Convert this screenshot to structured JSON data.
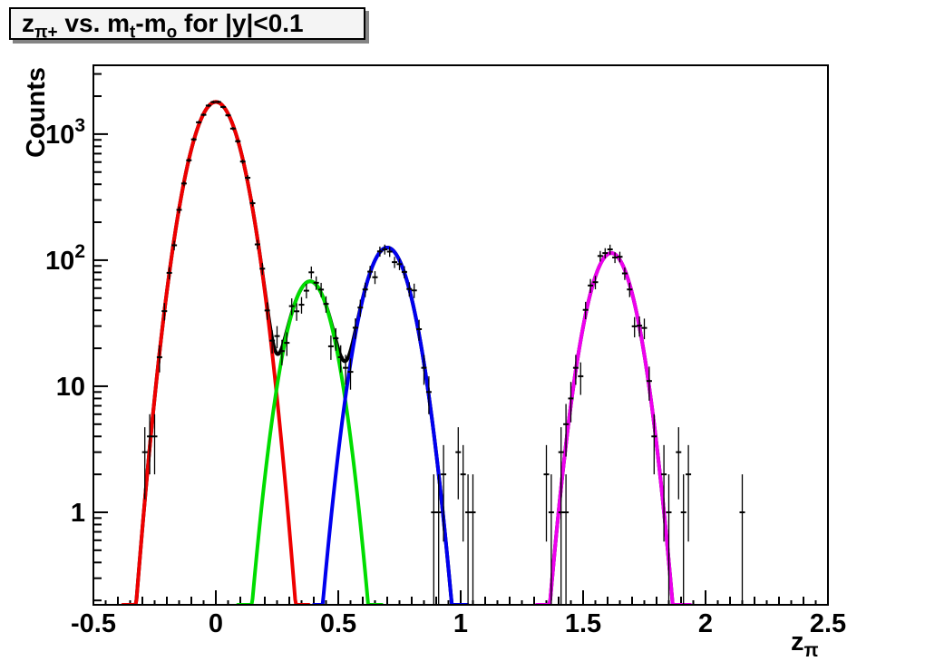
{
  "header": {
    "title_parts": [
      {
        "t": "z",
        "sub": "π+"
      },
      {
        "t": " vs. m",
        "sub": "t"
      },
      {
        "t": "-m",
        "sub": "o"
      },
      {
        "t": " for |y|<0.1",
        "sub": ""
      }
    ]
  },
  "axes": {
    "y_title": "Counts",
    "x_title": "z",
    "x_title_sub": "π"
  },
  "chart_data": {
    "type": "line+scatter",
    "title": "z_{π+} vs. m_t-m_o for |y|<0.1",
    "xlabel": "z_π",
    "ylabel": "Counts",
    "x_range": [
      -0.5,
      2.5
    ],
    "y_scale": "log",
    "y_range": [
      0.1846,
      3515
    ],
    "grid": false,
    "legend": "none",
    "axis_color": "#000000",
    "x_ticks": [
      {
        "value": -0.5,
        "label": "-0.5"
      },
      {
        "value": 0,
        "label": "0"
      },
      {
        "value": 0.5,
        "label": "0.5"
      },
      {
        "value": 1,
        "label": "1"
      },
      {
        "value": 1.5,
        "label": "1.5"
      },
      {
        "value": 2,
        "label": "2"
      },
      {
        "value": 2.5,
        "label": "2.5"
      }
    ],
    "x_minor_step": 0.05,
    "y_ticks": [
      {
        "value": 1,
        "base": "1",
        "exp": ""
      },
      {
        "value": 10,
        "base": "10",
        "exp": ""
      },
      {
        "value": 100,
        "base": "10",
        "exp": "2"
      },
      {
        "value": 1000,
        "base": "10",
        "exp": "3"
      }
    ],
    "fit_components": [
      {
        "name": "gauss-red",
        "color": "#ee0000",
        "amplitude": 1800,
        "mean": 0.0,
        "sigma": 0.076,
        "draw_range": [
          -0.38,
          0.38
        ]
      },
      {
        "name": "gauss-green",
        "color": "#00dd00",
        "amplitude": 68,
        "mean": 0.385,
        "sigma": 0.069,
        "draw_range": [
          0.09,
          0.68
        ]
      },
      {
        "name": "gauss-blue",
        "color": "#0000ee",
        "amplitude": 126,
        "mean": 0.7,
        "sigma": 0.073,
        "draw_range": [
          0.4,
          1.03
        ]
      },
      {
        "name": "gauss-magenta",
        "color": "#ee00ee",
        "amplitude": 114,
        "mean": 1.615,
        "sigma": 0.07,
        "draw_range": [
          1.31,
          1.94
        ]
      }
    ],
    "sum_curve": {
      "name": "total-fit",
      "color": "#000000",
      "draw_ranges": [
        [
          -0.36,
          1.0
        ],
        [
          1.33,
          1.9
        ]
      ]
    },
    "data_points": {
      "marker": "cross-with-error-bars",
      "color": "#000000",
      "bin_width": 0.02,
      "ranges": [
        [
          -0.33,
          1.05
        ],
        [
          1.33,
          1.97
        ]
      ],
      "noise": "poisson",
      "seed": 7,
      "extra_points": [
        {
          "x": 0.99,
          "y": 3
        },
        {
          "x": 1.01,
          "y": 2
        },
        {
          "x": 1.03,
          "y": 1
        },
        {
          "x": 1.05,
          "y": 1
        },
        {
          "x": 1.35,
          "y": 2
        },
        {
          "x": 1.37,
          "y": 1
        },
        {
          "x": 1.41,
          "y": 3
        },
        {
          "x": 1.43,
          "y": 1
        },
        {
          "x": 1.89,
          "y": 3
        },
        {
          "x": 1.91,
          "y": 1
        },
        {
          "x": 1.93,
          "y": 2
        },
        {
          "x": 2.15,
          "y": 1
        }
      ]
    }
  }
}
